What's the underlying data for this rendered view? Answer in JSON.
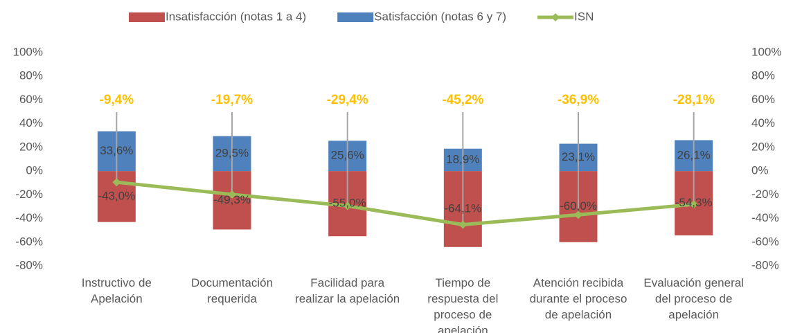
{
  "chart_data": {
    "type": "bar",
    "categories": [
      "Instructivo de Apelación",
      "Documentación requerida",
      "Facilidad para realizar la apelación",
      "Tiempo de respuesta del proceso de apelación",
      "Atención recibida durante el proceso de apelación",
      "Evaluación general del proceso de apelación"
    ],
    "series": [
      {
        "name": "Insatisfacción (notas 1 a 4)",
        "type": "bar",
        "color": "#c0504d",
        "values": [
          -43.0,
          -49.3,
          -55.0,
          -64.1,
          -60.0,
          -54.3
        ],
        "value_labels": [
          "-43,0%",
          "-49,3%",
          "-55,0%",
          "-64,1%",
          "-60,0%",
          "-54,3%"
        ]
      },
      {
        "name": "Satisfacción (notas 6 y 7)",
        "type": "bar",
        "color": "#4f81bd",
        "values": [
          33.6,
          29.5,
          25.6,
          18.9,
          23.1,
          26.1
        ],
        "value_labels": [
          "33,6%",
          "29,5%",
          "25,6%",
          "18,9%",
          "23,1%",
          "26,1%"
        ]
      },
      {
        "name": "ISN",
        "type": "line",
        "color": "#9bbb59",
        "values": [
          -9.4,
          -19.7,
          -29.4,
          -45.2,
          -36.9,
          -28.1
        ],
        "value_labels": [
          "-9,4%",
          "-19,7%",
          "-29,4%",
          "-45,2%",
          "-36,9%",
          "-28,1%"
        ],
        "label_color": "#ffc000"
      }
    ],
    "ylim": [
      -80,
      100
    ],
    "yticks": [
      {
        "value": -80,
        "label": "-80%"
      },
      {
        "value": -60,
        "label": "-60%"
      },
      {
        "value": -40,
        "label": "-40%"
      },
      {
        "value": -20,
        "label": "-20%"
      },
      {
        "value": 0,
        "label": "0%"
      },
      {
        "value": 20,
        "label": "20%"
      },
      {
        "value": 40,
        "label": "40%"
      },
      {
        "value": 60,
        "label": "60%"
      },
      {
        "value": 80,
        "label": "80%"
      },
      {
        "value": 100,
        "label": "100%"
      }
    ],
    "y2lim": [
      -80,
      100
    ],
    "y2ticks": [
      {
        "value": -80,
        "label": "-80%"
      },
      {
        "value": -60,
        "label": "-60%"
      },
      {
        "value": -40,
        "label": "-40%"
      },
      {
        "value": -20,
        "label": "-20%"
      },
      {
        "value": 0,
        "label": "0%"
      },
      {
        "value": 20,
        "label": "20%"
      },
      {
        "value": 40,
        "label": "40%"
      },
      {
        "value": 60,
        "label": "60%"
      },
      {
        "value": 80,
        "label": "80%"
      },
      {
        "value": 100,
        "label": "100%"
      }
    ],
    "legend": "top"
  }
}
